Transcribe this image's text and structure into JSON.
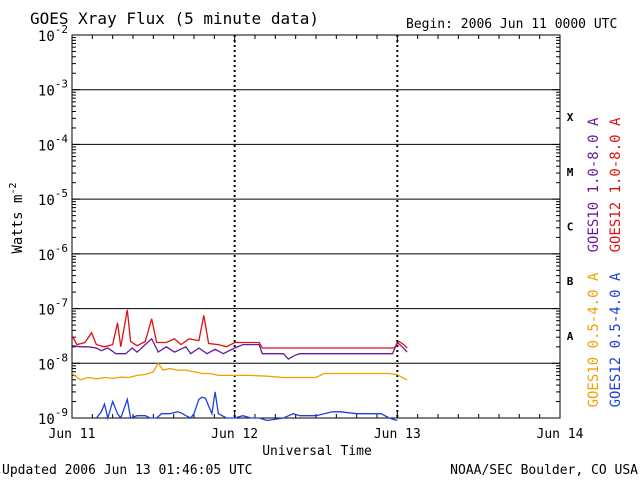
{
  "chart_data": {
    "type": "line",
    "title": "GOES Xray Flux (5 minute data)",
    "begin_label": "Begin:  2006 Jun 11 0000 UTC",
    "xlabel": "Universal Time",
    "ylabel_base": "Watts m",
    "ylabel_sup": "-2",
    "y_scale": "log",
    "ylim": [
      1e-09,
      0.01
    ],
    "xlim": [
      "2006-06-11 00:00",
      "2006-06-14 00:00"
    ],
    "x_ticks": [
      {
        "t": 0,
        "label": "Jun 11"
      },
      {
        "t": 1,
        "label": "Jun 12"
      },
      {
        "t": 2,
        "label": "Jun 13"
      },
      {
        "t": 3,
        "label": "Jun 14"
      }
    ],
    "y_ticks": [
      {
        "exp": -2,
        "label_base": "10",
        "label_exp": "-2"
      },
      {
        "exp": -3,
        "label_base": "10",
        "label_exp": "-3"
      },
      {
        "exp": -4,
        "label_base": "10",
        "label_exp": "-4"
      },
      {
        "exp": -5,
        "label_base": "10",
        "label_exp": "-5"
      },
      {
        "exp": -6,
        "label_base": "10",
        "label_exp": "-6"
      },
      {
        "exp": -7,
        "label_base": "10",
        "label_exp": "-7"
      },
      {
        "exp": -8,
        "label_base": "10",
        "label_exp": "-8"
      },
      {
        "exp": -9,
        "label_base": "10",
        "label_exp": "-9"
      }
    ],
    "flare_classes": [
      {
        "label": "X",
        "exp": -3.5
      },
      {
        "label": "M",
        "exp": -4.5
      },
      {
        "label": "C",
        "exp": -5.5
      },
      {
        "label": "B",
        "exp": -6.5
      },
      {
        "label": "A",
        "exp": -7.5
      }
    ],
    "grid": "horizontal lines at each decade; dashed verticals at day boundaries",
    "legend_placement": "right side, vertical",
    "series": [
      {
        "name": "GOES10 1.0-8.0 A",
        "color": "#6a1b9a",
        "points": [
          [
            0.0,
            2.1e-08
          ],
          [
            0.05,
            2e-08
          ],
          [
            0.1,
            2e-08
          ],
          [
            0.15,
            1.9e-08
          ],
          [
            0.18,
            1.7e-08
          ],
          [
            0.22,
            1.9e-08
          ],
          [
            0.27,
            1.5e-08
          ],
          [
            0.33,
            1.5e-08
          ],
          [
            0.37,
            1.9e-08
          ],
          [
            0.4,
            1.6e-08
          ],
          [
            0.45,
            2.2e-08
          ],
          [
            0.49,
            2.8e-08
          ],
          [
            0.53,
            1.6e-08
          ],
          [
            0.58,
            2e-08
          ],
          [
            0.63,
            1.6e-08
          ],
          [
            0.7,
            2e-08
          ],
          [
            0.73,
            1.5e-08
          ],
          [
            0.78,
            1.9e-08
          ],
          [
            0.83,
            1.5e-08
          ],
          [
            0.88,
            1.8e-08
          ],
          [
            0.93,
            1.5e-08
          ],
          [
            1.0,
            1.9e-08
          ],
          [
            1.05,
            2.2e-08
          ],
          [
            1.1,
            2.2e-08
          ],
          [
            1.15,
            2.2e-08
          ],
          [
            1.17,
            1.5e-08
          ],
          [
            1.25,
            1.5e-08
          ],
          [
            1.3,
            1.5e-08
          ],
          [
            1.33,
            1.2e-08
          ],
          [
            1.37,
            1.4e-08
          ],
          [
            1.4,
            1.5e-08
          ],
          [
            1.5,
            1.5e-08
          ],
          [
            1.6,
            1.5e-08
          ],
          [
            1.7,
            1.5e-08
          ],
          [
            1.8,
            1.5e-08
          ],
          [
            1.9,
            1.5e-08
          ],
          [
            1.97,
            1.5e-08
          ],
          [
            2.0,
            2.4e-08
          ],
          [
            2.03,
            2e-08
          ],
          [
            2.06,
            1.6e-08
          ]
        ]
      },
      {
        "name": "GOES12 1.0-8.0 A",
        "color": "#e01010",
        "points": [
          [
            0.0,
            3.2e-08
          ],
          [
            0.03,
            2.2e-08
          ],
          [
            0.08,
            2.4e-08
          ],
          [
            0.12,
            3.6e-08
          ],
          [
            0.15,
            2.2e-08
          ],
          [
            0.2,
            2e-08
          ],
          [
            0.25,
            2.2e-08
          ],
          [
            0.28,
            5.5e-08
          ],
          [
            0.3,
            2e-08
          ],
          [
            0.34,
            9.5e-08
          ],
          [
            0.36,
            2.5e-08
          ],
          [
            0.4,
            2.1e-08
          ],
          [
            0.45,
            2.5e-08
          ],
          [
            0.49,
            6.5e-08
          ],
          [
            0.52,
            2.4e-08
          ],
          [
            0.58,
            2.4e-08
          ],
          [
            0.63,
            2.8e-08
          ],
          [
            0.67,
            2.2e-08
          ],
          [
            0.72,
            2.8e-08
          ],
          [
            0.78,
            2.6e-08
          ],
          [
            0.81,
            7.5e-08
          ],
          [
            0.84,
            2.3e-08
          ],
          [
            0.9,
            2.2e-08
          ],
          [
            0.95,
            2e-08
          ],
          [
            1.0,
            2.4e-08
          ],
          [
            1.05,
            2.4e-08
          ],
          [
            1.1,
            2.4e-08
          ],
          [
            1.15,
            2.4e-08
          ],
          [
            1.17,
            1.9e-08
          ],
          [
            1.3,
            1.9e-08
          ],
          [
            1.45,
            1.9e-08
          ],
          [
            1.6,
            1.9e-08
          ],
          [
            1.75,
            1.9e-08
          ],
          [
            1.9,
            1.9e-08
          ],
          [
            1.98,
            1.9e-08
          ],
          [
            2.01,
            2.5e-08
          ],
          [
            2.04,
            2.2e-08
          ],
          [
            2.06,
            1.9e-08
          ]
        ]
      },
      {
        "name": "GOES10 0.5-4.0 A",
        "color": "#f2a000",
        "points": [
          [
            0.0,
            6.5e-09
          ],
          [
            0.05,
            5e-09
          ],
          [
            0.1,
            5.5e-09
          ],
          [
            0.15,
            5.2e-09
          ],
          [
            0.2,
            5.5e-09
          ],
          [
            0.25,
            5.3e-09
          ],
          [
            0.3,
            5.6e-09
          ],
          [
            0.35,
            5.5e-09
          ],
          [
            0.4,
            6e-09
          ],
          [
            0.45,
            6.2e-09
          ],
          [
            0.5,
            7e-09
          ],
          [
            0.53,
            1e-08
          ],
          [
            0.56,
            7.5e-09
          ],
          [
            0.6,
            8e-09
          ],
          [
            0.65,
            7.5e-09
          ],
          [
            0.7,
            7.5e-09
          ],
          [
            0.75,
            7e-09
          ],
          [
            0.8,
            6.5e-09
          ],
          [
            0.85,
            6.5e-09
          ],
          [
            0.9,
            6e-09
          ],
          [
            0.95,
            6e-09
          ],
          [
            1.0,
            6e-09
          ],
          [
            1.1,
            6e-09
          ],
          [
            1.2,
            5.8e-09
          ],
          [
            1.3,
            5.5e-09
          ],
          [
            1.4,
            5.5e-09
          ],
          [
            1.5,
            5.5e-09
          ],
          [
            1.55,
            6.5e-09
          ],
          [
            1.65,
            6.5e-09
          ],
          [
            1.75,
            6.5e-09
          ],
          [
            1.85,
            6.5e-09
          ],
          [
            1.95,
            6.5e-09
          ],
          [
            2.0,
            6.2e-09
          ],
          [
            2.03,
            5.5e-09
          ],
          [
            2.06,
            5e-09
          ]
        ]
      },
      {
        "name": "GOES12 0.5-4.0 A",
        "color": "#1f3fe0",
        "points": [
          [
            0.15,
            1e-09
          ],
          [
            0.18,
            1.3e-09
          ],
          [
            0.2,
            1.8e-09
          ],
          [
            0.22,
            1e-09
          ],
          [
            0.25,
            2e-09
          ],
          [
            0.28,
            1.2e-09
          ],
          [
            0.3,
            1e-09
          ],
          [
            0.34,
            2.2e-09
          ],
          [
            0.36,
            1e-09
          ],
          [
            0.4,
            1.1e-09
          ],
          [
            0.45,
            1.1e-09
          ],
          [
            0.48,
            1e-09
          ],
          [
            0.52,
            1e-09
          ],
          [
            0.55,
            1.2e-09
          ],
          [
            0.6,
            1.2e-09
          ],
          [
            0.65,
            1.3e-09
          ],
          [
            0.68,
            1.2e-09
          ],
          [
            0.7,
            1.1e-09
          ],
          [
            0.73,
            1e-09
          ],
          [
            0.75,
            1.2e-09
          ],
          [
            0.78,
            2.2e-09
          ],
          [
            0.8,
            2.4e-09
          ],
          [
            0.82,
            2.3e-09
          ],
          [
            0.86,
            1.2e-09
          ],
          [
            0.88,
            3e-09
          ],
          [
            0.9,
            1.2e-09
          ],
          [
            0.95,
            1e-09
          ],
          [
            1.0,
            1e-09
          ],
          [
            1.05,
            1.1e-09
          ],
          [
            1.1,
            1e-09
          ],
          [
            1.15,
            1e-09
          ],
          [
            1.2,
            9e-10
          ],
          [
            1.3,
            1e-09
          ],
          [
            1.36,
            1.2e-09
          ],
          [
            1.4,
            1.1e-09
          ],
          [
            1.5,
            1.1e-09
          ],
          [
            1.55,
            1.2e-09
          ],
          [
            1.6,
            1.3e-09
          ],
          [
            1.65,
            1.3e-09
          ],
          [
            1.75,
            1.2e-09
          ],
          [
            1.85,
            1.2e-09
          ],
          [
            1.9,
            1.2e-09
          ],
          [
            1.95,
            1e-09
          ],
          [
            2.0,
            9e-10
          ]
        ]
      }
    ]
  },
  "footer": {
    "updated": "Updated 2006 Jun 13 01:46:05 UTC",
    "credit": "NOAA/SEC Boulder, CO USA"
  }
}
